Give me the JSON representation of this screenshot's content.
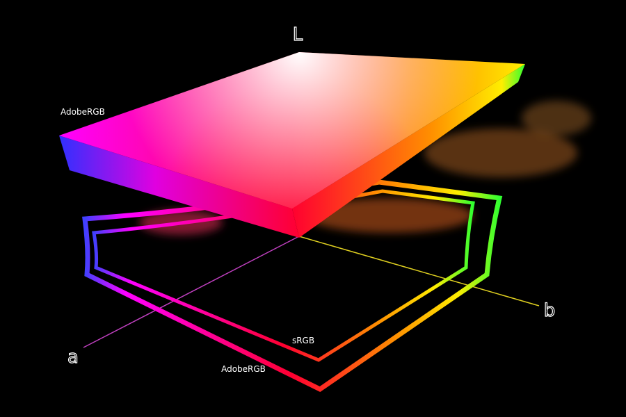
{
  "axes": {
    "l": "L",
    "a": "a",
    "b": "b"
  },
  "labels": {
    "solid": "AdobeRGB",
    "inner_outline": "sRGB",
    "outer_outline": "AdobeRGB"
  }
}
